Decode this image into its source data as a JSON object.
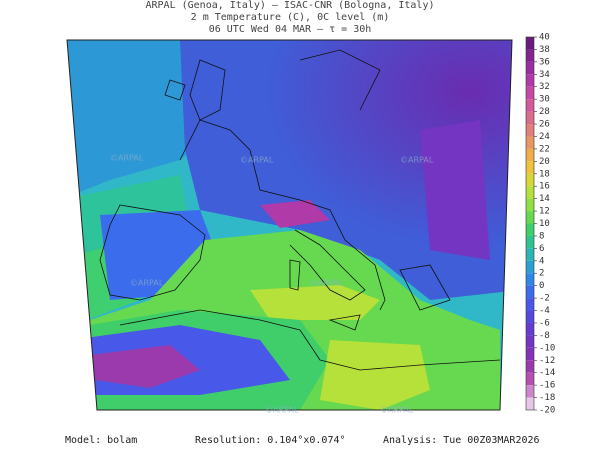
{
  "header": {
    "line1": "ARPAL (Genoa, Italy)  —  ISAC-CNR (Bologna, Italy)",
    "line2": "2 m Temperature (C), 0C level (m)",
    "line3": "06 UTC Wed 04 MAR  —  τ = 30h"
  },
  "watermark": "©ARPAL",
  "colorbar": {
    "ticks": [
      40,
      38,
      36,
      34,
      32,
      30,
      28,
      26,
      24,
      22,
      20,
      18,
      16,
      14,
      12,
      10,
      8,
      6,
      4,
      2,
      0,
      -2,
      -4,
      -6,
      -8,
      -10,
      -12,
      -14,
      -16,
      -18,
      -20
    ],
    "colors": [
      "#6a1b7d",
      "#82238f",
      "#9a2ea0",
      "#b03aa8",
      "#c24aa6",
      "#cf5a9c",
      "#d86c8c",
      "#e0807a",
      "#e89664",
      "#efad4c",
      "#eec23a",
      "#d8d636",
      "#b6e03a",
      "#8ee044",
      "#66d950",
      "#3fce6a",
      "#2ec38e",
      "#2ab5b4",
      "#2c9fd2",
      "#2f86e4",
      "#3a6cec",
      "#4858e8",
      "#5648dc",
      "#653ccf",
      "#7435c2",
      "#8533b6",
      "#9a3aac",
      "#b44fb0",
      "#cd86cc",
      "#e8c6e8"
    ]
  },
  "footer": {
    "model": "Model: bolam",
    "resolution": "Resolution: 0.104°x0.074°",
    "analysis": "Analysis: Tue 00Z03MAR2026"
  }
}
